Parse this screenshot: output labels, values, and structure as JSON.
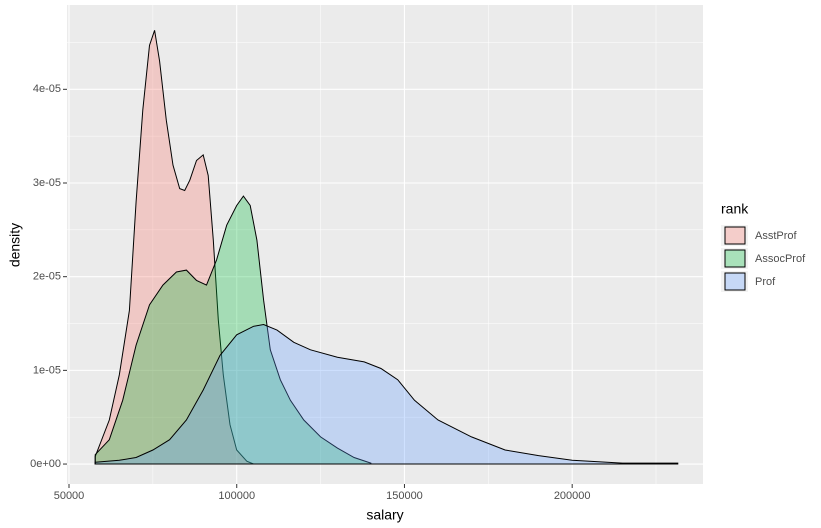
{
  "chart_data": {
    "type": "density",
    "x_label": "salary",
    "y_label": "density",
    "legend_title": "rank",
    "xlim": [
      49400,
      239000
    ],
    "ylim": [
      -2.13e-06,
      4.9e-05
    ],
    "xticks": [
      50000,
      100000,
      150000,
      200000
    ],
    "x_minor_grid": [
      75000,
      125000,
      175000,
      225000
    ],
    "yticks": [
      {
        "value": 0,
        "label": "0e+00"
      },
      {
        "value": 1e-05,
        "label": "1e-05"
      },
      {
        "value": 2e-05,
        "label": "2e-05"
      },
      {
        "value": 3e-05,
        "label": "3e-05"
      },
      {
        "value": 4e-05,
        "label": "4e-05"
      }
    ],
    "y_minor_grid": [
      5e-06,
      1.5e-05,
      2.5e-05,
      3.5e-05,
      4.5e-05
    ],
    "grid": true,
    "fill_opacity": 0.3,
    "series": [
      {
        "name": "AsstProf",
        "color": "#F8766D",
        "x": [
          57800,
          62000,
          65000,
          68000,
          70000,
          72000,
          74000,
          75500,
          77000,
          79000,
          81000,
          83000,
          84500,
          86000,
          88000,
          90000,
          91500,
          93000,
          94500,
          96000,
          98000,
          100000,
          103000,
          105000
        ],
        "values": [
          8e-07,
          4.7e-06,
          9.5e-06,
          1.64e-05,
          2.8e-05,
          3.78e-05,
          4.47e-05,
          4.63e-05,
          4.3e-05,
          3.67e-05,
          3.19e-05,
          2.94e-05,
          2.92e-05,
          3.03e-05,
          3.24e-05,
          3.3e-05,
          3.08e-05,
          2.39e-05,
          1.54e-05,
          9.5e-06,
          4.2e-06,
          1.5e-06,
          3e-07,
          0
        ]
      },
      {
        "name": "AssocProf",
        "color": "#00BA38",
        "x": [
          57800,
          62000,
          66000,
          70000,
          74000,
          78000,
          82000,
          85000,
          88000,
          91000,
          94000,
          97000,
          100000,
          102000,
          104000,
          106000,
          108000,
          110000,
          113000,
          116000,
          120000,
          125000,
          130000,
          135000,
          140000
        ],
        "values": [
          1e-06,
          2.6e-06,
          6.8e-06,
          1.27e-05,
          1.7e-05,
          1.91e-05,
          2.05e-05,
          2.07e-05,
          1.96e-05,
          1.91e-05,
          2.18e-05,
          2.55e-05,
          2.76e-05,
          2.86e-05,
          2.76e-05,
          2.39e-05,
          1.75e-05,
          1.22e-05,
          9e-06,
          6.8e-06,
          4.7e-06,
          2.9e-06,
          1.7e-06,
          7e-07,
          1e-07
        ]
      },
      {
        "name": "Prof",
        "color": "#619CFF",
        "x": [
          57800,
          65000,
          70000,
          75000,
          80000,
          85000,
          90000,
          95000,
          100000,
          105000,
          108000,
          112000,
          117000,
          122000,
          130000,
          138000,
          143000,
          148000,
          153000,
          160000,
          170000,
          180000,
          190000,
          200000,
          215000,
          231500
        ],
        "values": [
          2e-07,
          4e-07,
          7e-07,
          1.5e-06,
          2.6e-06,
          4.7e-06,
          7.9e-06,
          1.16e-05,
          1.38e-05,
          1.47e-05,
          1.49e-05,
          1.43e-05,
          1.3e-05,
          1.22e-05,
          1.14e-05,
          1.09e-05,
          1.02e-05,
          9e-06,
          6.8e-06,
          4.7e-06,
          2.9e-06,
          1.5e-06,
          9e-07,
          4e-07,
          1e-07,
          1e-07
        ]
      }
    ]
  }
}
